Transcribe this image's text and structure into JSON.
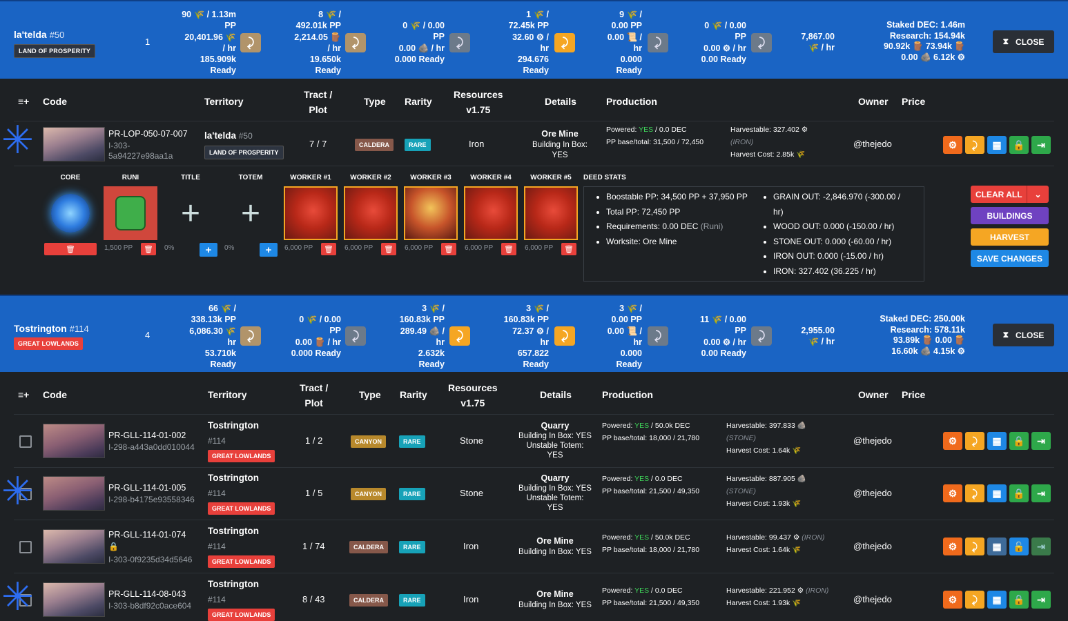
{
  "banner1": {
    "name": "la'telda",
    "num": "#50",
    "badge": "LAND OF PROSPERITY",
    "count": "1",
    "res": [
      {
        "l1": "90 🌾 / 1.13m",
        "l2": "PP",
        "l3": "20,401.96 🌾",
        "l4": "/ hr",
        "l5": "185.909k",
        "l6": "Ready"
      },
      {
        "l1": "8 🌾 /",
        "l2": "492.01k PP",
        "l3": "2,214.05 🪵",
        "l4": "/ hr",
        "l5": "19.650k",
        "l6": "Ready"
      },
      {
        "l1": "0 🌾 / 0.00",
        "l2": "PP",
        "l3": "0.00 🪨 / hr",
        "l4": "0.000 Ready"
      },
      {
        "l1": "1 🌾 /",
        "l2": "72.45k PP",
        "l3": "32.60 ⚙ /",
        "l4": "hr",
        "l5": "294.676",
        "l6": "Ready"
      },
      {
        "l1": "9 🌾 /",
        "l2": "0.00 PP",
        "l3": "0.00 📜 /",
        "l4": "hr",
        "l5": "0.000",
        "l6": "Ready"
      },
      {
        "l1": "0 🌾 / 0.00",
        "l2": "PP",
        "l3": "0.00 ⚙ / hr",
        "l4": "0.00 Ready"
      },
      {
        "l1": "7,867.00",
        "l2": "🌾 / hr"
      }
    ],
    "staked": [
      "Staked DEC: 1.46m",
      "Research: 154.94k",
      "90.92k 🪵  73.94k 🪵",
      "0.00 🪨  6.12k ⚙"
    ],
    "close": "CLOSE"
  },
  "table1": {
    "headers": {
      "code": "Code",
      "territory": "Territory",
      "tract": "Tract /",
      "plot": "Plot",
      "type": "Type",
      "rarity": "Rarity",
      "resources": "Resources",
      "version": "v1.75",
      "details": "Details",
      "production": "Production",
      "owner": "Owner",
      "price": "Price"
    },
    "rows": [
      {
        "code": "PR-LOP-050-07-007",
        "sub": "I-303-",
        "sub2": "5a94227e98aa1a",
        "terr": "la'telda",
        "terrnum": "#50",
        "region": "LAND OF PROSPERITY",
        "tract": "7 / 7",
        "type": "CALDERA",
        "rarity": "RARE",
        "res": "Iron",
        "d1": "Ore Mine",
        "d2": "Building In Box:",
        "d3": "YES",
        "powered": "Powered: ",
        "pyes": "YES",
        "pdec": " / 0.0 DEC",
        "pp": "PP base/total: 31,500 / 72,450",
        "h1": "Harvestable: 327.402 ⚙",
        "h2": "(IRON)",
        "h3": "Harvest Cost: 2.85k 🌾",
        "owner": "@thejedo"
      }
    ]
  },
  "detail": {
    "slots": [
      "CORE",
      "RUNI",
      "TITLE",
      "TOTEM",
      "WORKER #1",
      "WORKER #2",
      "WORKER #3",
      "WORKER #4",
      "WORKER #5",
      "DEED STATS"
    ],
    "runi_pp": "1,500 PP",
    "pct": "0%",
    "worker_pp": "6,000 PP",
    "stats_left": [
      "Boostable PP: 34,500 PP + 37,950 PP",
      "Total PP: 72,450 PP",
      "Requirements: 0.00 DEC",
      "Worksite: Ore Mine"
    ],
    "stats_left_note": "(Runi)",
    "stats_right": [
      "GRAIN OUT: -2,846.970 (-300.00 /",
      "hr)",
      "WOOD OUT: 0.000 (-150.00 / hr)",
      "STONE OUT: 0.000 (-60.00 / hr)",
      "IRON OUT: 0.000 (-15.00 / hr)",
      "IRON: 327.402 (36.225 / hr)"
    ],
    "buttons": {
      "clear": "CLEAR ALL",
      "buildings": "BUILDINGS",
      "harvest": "HARVEST",
      "save": "SAVE CHANGES"
    }
  },
  "banner2": {
    "name": "Tostrington",
    "num": "#114",
    "badge": "GREAT LOWLANDS",
    "count": "4",
    "res": [
      {
        "l1": "66 🌾 /",
        "l2": "338.13k PP",
        "l3": "6,086.30 🌾",
        "l4": "hr",
        "l5": "53.710k",
        "l6": "Ready"
      },
      {
        "l1": "0 🌾 / 0.00",
        "l2": "PP",
        "l3": "0.00 🪵 / hr",
        "l4": "0.000 Ready"
      },
      {
        "l1": "3 🌾 /",
        "l2": "160.83k PP",
        "l3": "289.49 🪨 /",
        "l4": "hr",
        "l5": "2.632k",
        "l6": "Ready"
      },
      {
        "l1": "3 🌾 /",
        "l2": "160.83k PP",
        "l3": "72.37 ⚙ /",
        "l4": "hr",
        "l5": "657.822",
        "l6": "Ready"
      },
      {
        "l1": "3 🌾 /",
        "l2": "0.00 PP",
        "l3": "0.00 📜 /",
        "l4": "hr",
        "l5": "0.000",
        "l6": "Ready"
      },
      {
        "l1": "11 🌾 / 0.00",
        "l2": "PP",
        "l3": "0.00 ⚙ / hr",
        "l4": "0.00 Ready"
      },
      {
        "l1": "2,955.00",
        "l2": "🌾 / hr"
      }
    ],
    "staked": [
      "Staked DEC: 250.00k",
      "Research: 578.11k",
      "93.89k 🪵  0.00 🪵",
      "16.60k 🪨  4.15k ⚙"
    ],
    "close": "CLOSE"
  },
  "table2": {
    "rows": [
      {
        "code": "PR-GLL-114-01-002",
        "sub": "I-298-a443a0dd010044",
        "terr": "Tostrington",
        "terrnum": "#114",
        "region": "GREAT LOWLANDS",
        "tract": "1 / 2",
        "type": "CANYON",
        "rarity": "RARE",
        "res": "Stone",
        "d1": "Quarry",
        "d2": "Building In Box: YES",
        "d3": "Unstable Totem:",
        "d4": "YES",
        "pyes": "YES",
        "pdec": " / 50.0k DEC",
        "pp": "PP base/total: 18,000 / 21,780",
        "h1": "Harvestable: 397.833 🪨",
        "h2": "(STONE)",
        "h3": "Harvest Cost: 1.64k 🌾",
        "owner": "@thejedo"
      },
      {
        "code": "PR-GLL-114-01-005",
        "sub": "I-298-b4175e93558346",
        "terr": "Tostrington",
        "terrnum": "#114",
        "region": "GREAT LOWLANDS",
        "tract": "1 / 5",
        "type": "CANYON",
        "rarity": "RARE",
        "res": "Stone",
        "d1": "Quarry",
        "d2": "Building In Box: YES",
        "d3": "Unstable Totem:",
        "d4": "YES",
        "pyes": "YES",
        "pdec": " / 0.0 DEC",
        "pp": "PP base/total: 21,500 / 49,350",
        "h1": "Harvestable: 887.905 🪨",
        "h2": "(STONE)",
        "h3": "Harvest Cost: 1.93k 🌾",
        "owner": "@thejedo"
      },
      {
        "code": "PR-GLL-114-01-074",
        "lock": "🔒",
        "sub": "I-303-0f9235d34d5646",
        "terr": "Tostrington",
        "terrnum": "#114",
        "region": "GREAT LOWLANDS",
        "tract": "1 / 74",
        "type": "CALDERA",
        "rarity": "RARE",
        "res": "Iron",
        "d1": "Ore Mine",
        "d2": "Building In Box: YES",
        "pyes": "YES",
        "pdec": " / 50.0k DEC",
        "pp": "PP base/total: 18,000 / 21,780",
        "h1": "Harvestable: 99.437 ⚙",
        "h2": "(IRON)",
        "h3": "Harvest Cost: 1.64k 🌾",
        "owner": "@thejedo"
      },
      {
        "code": "PR-GLL-114-08-043",
        "sub": "I-303-b8df92c0ace604",
        "terr": "Tostrington",
        "terrnum": "#114",
        "region": "GREAT LOWLANDS",
        "tract": "8 / 43",
        "type": "CALDERA",
        "rarity": "RARE",
        "res": "Iron",
        "d1": "Ore Mine",
        "d2": "Building In Box: YES",
        "pyes": "YES",
        "pdec": " / 0.0 DEC",
        "pp": "PP base/total: 21,500 / 49,350",
        "h1": "Harvestable: 221.952 ⚙",
        "h2": "(IRON)",
        "h3": "Harvest Cost: 1.93k 🌾",
        "owner": "@thejedo"
      }
    ]
  },
  "common": {
    "powered": "Powered: ",
    "filter_icon": "≡+"
  }
}
